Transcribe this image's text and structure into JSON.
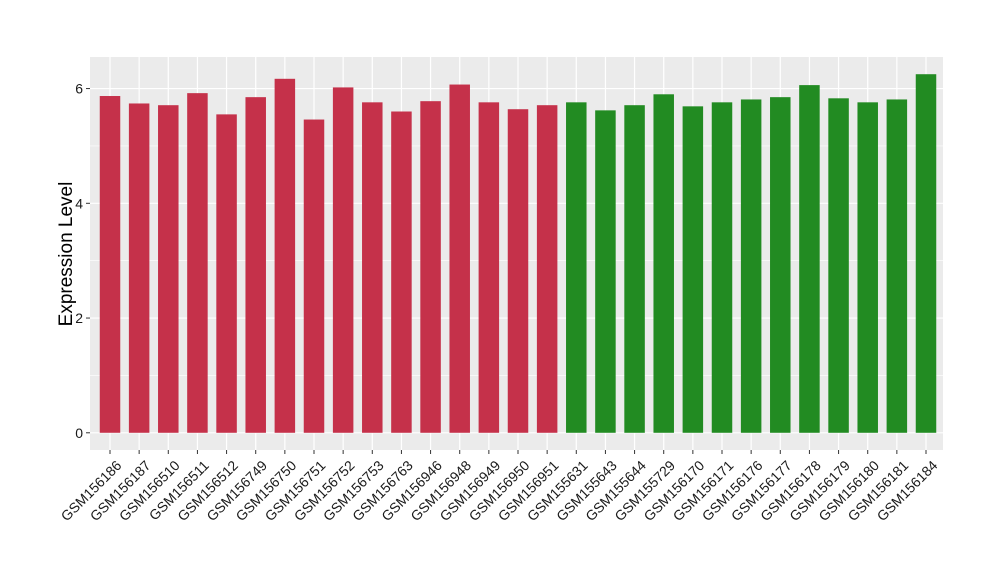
{
  "chart_data": {
    "type": "bar",
    "title": "",
    "xlabel": "",
    "ylabel": "Expression Level",
    "ylim": [
      -0.3,
      6.55
    ],
    "yticks": [
      0,
      2,
      4,
      6
    ],
    "grid": true,
    "legend": "none",
    "colors": {
      "group_a": "#C5314A",
      "group_b": "#228B22",
      "panel_bg": "#EBEBEB",
      "grid": "#FFFFFF"
    },
    "categories": [
      "GSM156186",
      "GSM156187",
      "GSM156510",
      "GSM156511",
      "GSM156512",
      "GSM156749",
      "GSM156750",
      "GSM156751",
      "GSM156752",
      "GSM156753",
      "GSM156763",
      "GSM156946",
      "GSM156948",
      "GSM156949",
      "GSM156950",
      "GSM156951",
      "GSM155631",
      "GSM155643",
      "GSM155644",
      "GSM155729",
      "GSM156170",
      "GSM156171",
      "GSM156176",
      "GSM156177",
      "GSM156178",
      "GSM156179",
      "GSM156180",
      "GSM156181",
      "GSM156184"
    ],
    "values": [
      5.87,
      5.74,
      5.71,
      5.92,
      5.55,
      5.85,
      6.17,
      5.46,
      6.02,
      5.76,
      5.6,
      5.78,
      6.07,
      5.76,
      5.64,
      5.71,
      5.76,
      5.62,
      5.71,
      5.9,
      5.69,
      5.76,
      5.81,
      5.85,
      6.06,
      5.83,
      5.76,
      5.81,
      6.25
    ],
    "groups": [
      "a",
      "a",
      "a",
      "a",
      "a",
      "a",
      "a",
      "a",
      "a",
      "a",
      "a",
      "a",
      "a",
      "a",
      "a",
      "a",
      "b",
      "b",
      "b",
      "b",
      "b",
      "b",
      "b",
      "b",
      "b",
      "b",
      "b",
      "b",
      "b"
    ]
  }
}
